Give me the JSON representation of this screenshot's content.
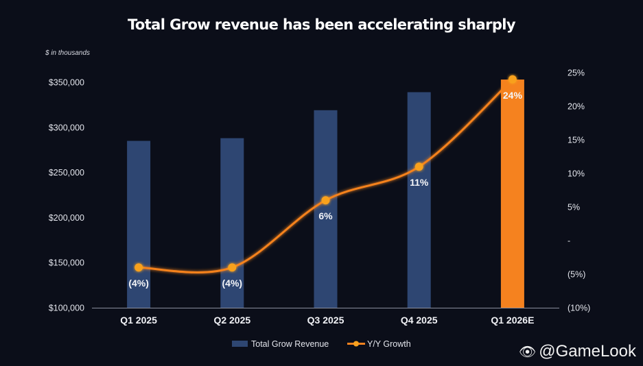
{
  "chart_data": {
    "type": "bar+line",
    "title": "Total Grow revenue has been accelerating sharply",
    "unit_note": "$ in thousands",
    "categories": [
      "Q1 2025",
      "Q2 2025",
      "Q3 2025",
      "Q4 2025",
      "Q1 2026E"
    ],
    "series": [
      {
        "name": "Total Grow Revenue",
        "type": "bar",
        "axis": "left",
        "values": [
          285000,
          288000,
          319000,
          339000,
          353000
        ],
        "colors": [
          "#2e4672",
          "#2e4672",
          "#2e4672",
          "#2e4672",
          "#f5821f"
        ]
      },
      {
        "name": "Y/Y Growth",
        "type": "line",
        "axis": "right",
        "values": [
          -4,
          -4,
          6,
          11,
          24
        ],
        "labels": [
          "(4%)",
          "(4%)",
          "6%",
          "11%",
          "24%"
        ],
        "color": "#f5821f"
      }
    ],
    "left_axis": {
      "min": 100000,
      "max": 350000,
      "ticks": [
        100000,
        150000,
        200000,
        250000,
        300000,
        350000
      ],
      "tick_labels": [
        "$100,000",
        "$150,000",
        "$200,000",
        "$250,000",
        "$300,000",
        "$350,000"
      ]
    },
    "right_axis": {
      "min": -10,
      "max": 25,
      "ticks": [
        -10,
        -5,
        0,
        5,
        10,
        15,
        20,
        25
      ],
      "tick_labels": [
        "(10%)",
        "(5%)",
        "-",
        "5%",
        "10%",
        "15%",
        "20%",
        "25%"
      ]
    },
    "grid": false,
    "legend_position": "bottom"
  },
  "watermark": {
    "icon": "weibo-icon",
    "text": "@GameLook"
  }
}
